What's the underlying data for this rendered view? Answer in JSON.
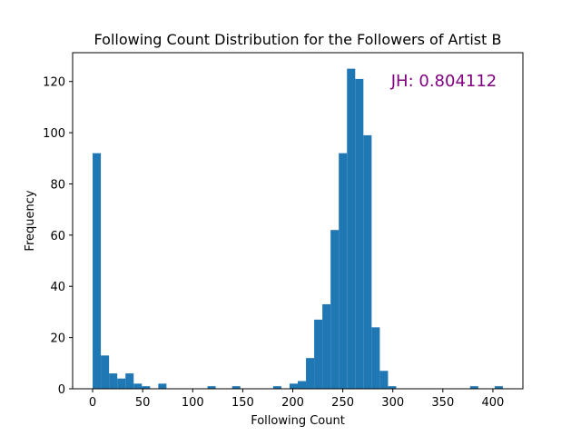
{
  "chart_data": {
    "type": "bar",
    "title": "Following Count Distribution for the Followers of Artist B",
    "xlabel": "Following Count",
    "ylabel": "Frequency",
    "xlim": [
      -20,
      430
    ],
    "ylim": [
      0,
      131.25
    ],
    "xticks": [
      0,
      50,
      100,
      150,
      200,
      250,
      300,
      350,
      400
    ],
    "yticks": [
      0,
      20,
      40,
      60,
      80,
      100,
      120
    ],
    "bar_color": "#1f77b4",
    "annotation": {
      "text": "JH: 0.804112",
      "color": "#800080"
    },
    "bins": [
      {
        "x0": 0,
        "x1": 8.2,
        "value": 92
      },
      {
        "x0": 8.2,
        "x1": 16.4,
        "value": 13
      },
      {
        "x0": 16.4,
        "x1": 24.6,
        "value": 6
      },
      {
        "x0": 24.6,
        "x1": 32.8,
        "value": 4
      },
      {
        "x0": 32.8,
        "x1": 41.0,
        "value": 6
      },
      {
        "x0": 41.0,
        "x1": 49.2,
        "value": 2
      },
      {
        "x0": 49.2,
        "x1": 57.4,
        "value": 1
      },
      {
        "x0": 65.6,
        "x1": 73.8,
        "value": 2
      },
      {
        "x0": 114.8,
        "x1": 123.0,
        "value": 1
      },
      {
        "x0": 139.4,
        "x1": 147.6,
        "value": 1
      },
      {
        "x0": 180.4,
        "x1": 188.6,
        "value": 1
      },
      {
        "x0": 196.8,
        "x1": 205.0,
        "value": 2
      },
      {
        "x0": 205.0,
        "x1": 213.2,
        "value": 3
      },
      {
        "x0": 213.2,
        "x1": 221.4,
        "value": 12
      },
      {
        "x0": 221.4,
        "x1": 229.6,
        "value": 27
      },
      {
        "x0": 229.6,
        "x1": 237.8,
        "value": 33
      },
      {
        "x0": 237.8,
        "x1": 246.0,
        "value": 62
      },
      {
        "x0": 246.0,
        "x1": 254.2,
        "value": 92
      },
      {
        "x0": 254.2,
        "x1": 262.4,
        "value": 125
      },
      {
        "x0": 262.4,
        "x1": 270.6,
        "value": 121
      },
      {
        "x0": 270.6,
        "x1": 278.8,
        "value": 99
      },
      {
        "x0": 278.8,
        "x1": 287.0,
        "value": 24
      },
      {
        "x0": 287.0,
        "x1": 295.2,
        "value": 7
      },
      {
        "x0": 295.2,
        "x1": 303.4,
        "value": 1
      },
      {
        "x0": 377.2,
        "x1": 385.4,
        "value": 1
      },
      {
        "x0": 401.8,
        "x1": 410.0,
        "value": 1
      }
    ]
  }
}
